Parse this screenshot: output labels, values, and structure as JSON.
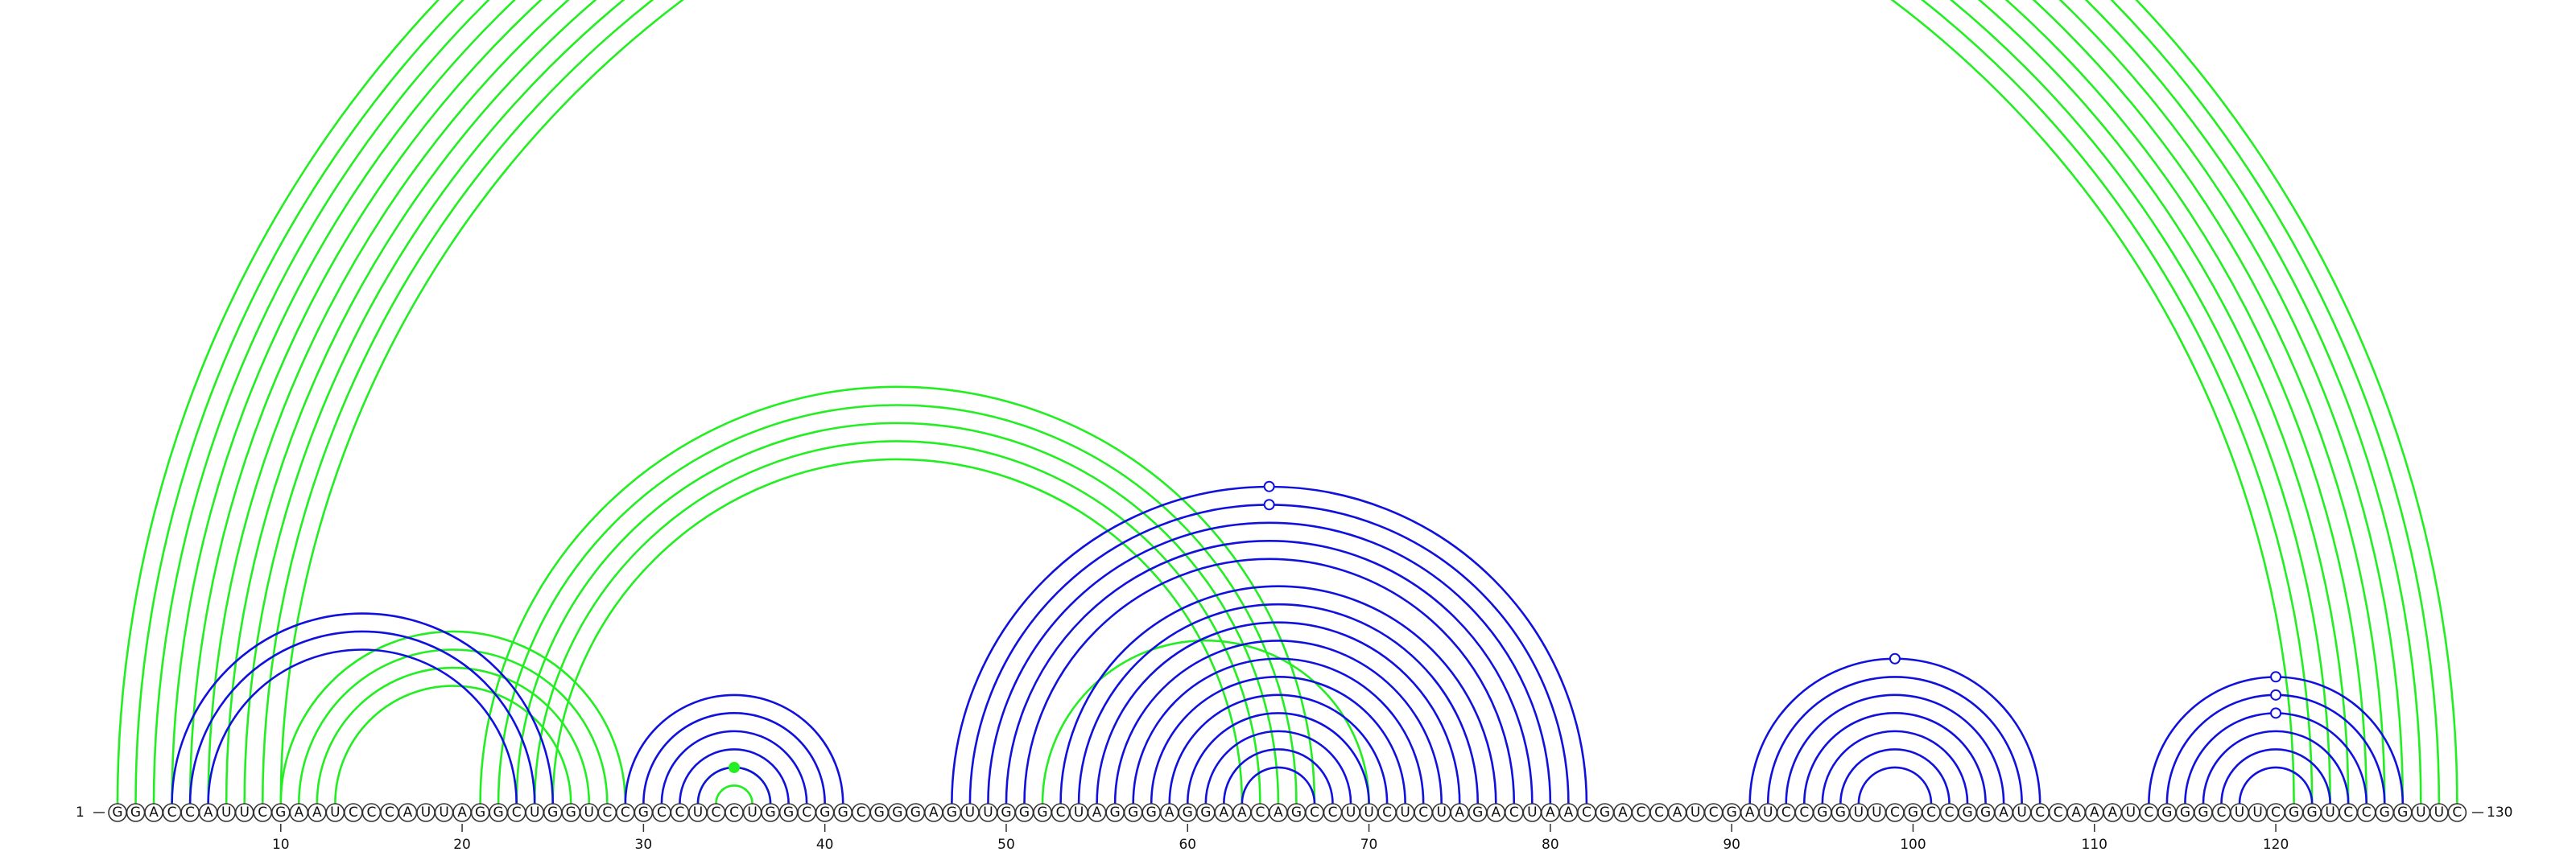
{
  "sequence": "GGACCAUUCGAAUCCCAUUAGGCUGGUCCGCCUCCUGGCGGCGGGAGUUGGGCUAGGGAGGAACAGCCUUCUCUAGACUAACGACCAUCGAUCCGGUUCGCCGGAUCCAAAUCGGGCUUCGGUCCGGUUC",
  "start_label": "1",
  "end_label": "130",
  "ticks": [
    "10",
    "20",
    "30",
    "40",
    "50",
    "60",
    "70",
    "80",
    "90",
    "100",
    "110",
    "120"
  ],
  "colors": {
    "green": "#22ee22",
    "blue": "#1111dd"
  },
  "chart_data": {
    "type": "arc",
    "length": 130,
    "green_arcs": [
      [
        1,
        130
      ],
      [
        2,
        129
      ],
      [
        3,
        128
      ],
      [
        4,
        127
      ],
      [
        5,
        126
      ],
      [
        6,
        125
      ],
      [
        7,
        124
      ],
      [
        8,
        123
      ],
      [
        9,
        122
      ],
      [
        10,
        121
      ],
      [
        10,
        29
      ],
      [
        11,
        28
      ],
      [
        12,
        27
      ],
      [
        13,
        26
      ],
      [
        21,
        67
      ],
      [
        22,
        66
      ],
      [
        23,
        65
      ],
      [
        24,
        64
      ],
      [
        25,
        63
      ],
      [
        33,
        37
      ],
      [
        34,
        36
      ],
      [
        52,
        70
      ]
    ],
    "blue_arcs": [
      [
        4,
        25
      ],
      [
        5,
        24
      ],
      [
        6,
        23
      ],
      [
        29,
        41
      ],
      [
        30,
        40
      ],
      [
        31,
        39
      ],
      [
        32,
        38
      ],
      [
        33,
        37
      ],
      [
        47,
        82
      ],
      [
        48,
        81
      ],
      [
        49,
        80
      ],
      [
        50,
        79
      ],
      [
        51,
        78
      ],
      [
        53,
        77
      ],
      [
        54,
        76
      ],
      [
        55,
        75
      ],
      [
        56,
        74
      ],
      [
        57,
        73
      ],
      [
        58,
        72
      ],
      [
        59,
        71
      ],
      [
        60,
        70
      ],
      [
        61,
        69
      ],
      [
        62,
        68
      ],
      [
        63,
        67
      ],
      [
        91,
        107
      ],
      [
        92,
        106
      ],
      [
        93,
        105
      ],
      [
        94,
        104
      ],
      [
        95,
        103
      ],
      [
        96,
        102
      ],
      [
        97,
        101
      ],
      [
        113,
        127
      ],
      [
        114,
        126
      ],
      [
        115,
        125
      ],
      [
        116,
        124
      ],
      [
        117,
        123
      ],
      [
        118,
        122
      ]
    ],
    "green_markers": [
      [
        66,
        "open"
      ],
      [
        65,
        "filled"
      ],
      [
        35,
        "filled"
      ]
    ],
    "blue_markers": [
      [
        65,
        "open"
      ],
      [
        65,
        "open"
      ],
      [
        120,
        "open"
      ],
      [
        120,
        "open"
      ],
      [
        99,
        "open"
      ],
      [
        120,
        "open"
      ]
    ]
  }
}
